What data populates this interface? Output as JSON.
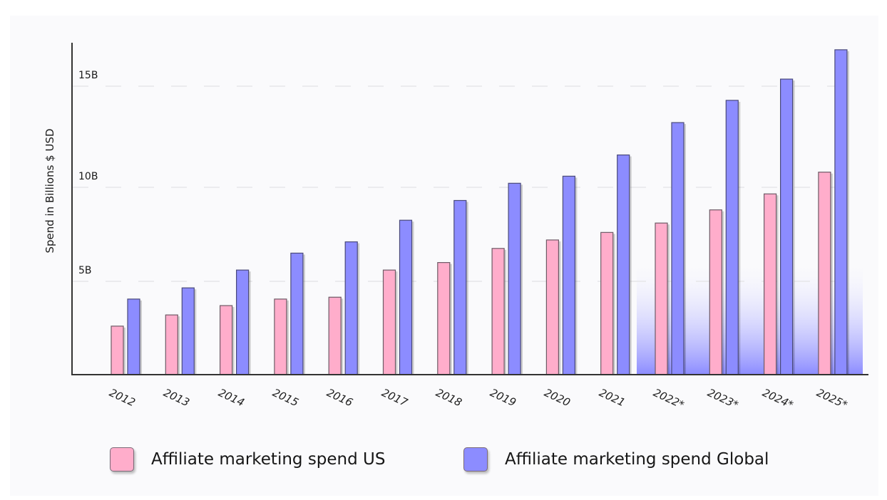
{
  "chart_data": {
    "type": "bar",
    "title": "",
    "xlabel": "",
    "ylabel": "Spend in Billions $ USD",
    "ylim": [
      0,
      17
    ],
    "yticks": [
      {
        "value": 5,
        "label": "5B"
      },
      {
        "value": 10,
        "label": "10B"
      },
      {
        "value": 15,
        "label": "15B"
      }
    ],
    "grid": true,
    "legend_position": "bottom",
    "categories": [
      "2012",
      "2013",
      "2014",
      "2015",
      "2016",
      "2017",
      "2018",
      "2019",
      "2020",
      "2021",
      "2022*",
      "2023*",
      "2024*",
      "2025*"
    ],
    "series": [
      {
        "name": "Affiliate marketing spend US",
        "color": "#ffadcb",
        "values": [
          2.6,
          3.2,
          3.7,
          4.05,
          4.15,
          5.6,
          6.0,
          6.75,
          7.2,
          7.6,
          8.1,
          8.8,
          9.65,
          10.75
        ]
      },
      {
        "name": "Affiliate marketing spend Global",
        "color": "#8c8cff",
        "values": [
          4.05,
          4.65,
          5.6,
          6.5,
          7.1,
          8.25,
          9.3,
          10.2,
          10.55,
          11.6,
          13.2,
          14.3,
          15.35,
          16.8
        ]
      }
    ],
    "annotations": [
      {
        "type": "highlight-region",
        "from": "2022*",
        "to": "2025*",
        "note": "forecast years (asterisk)"
      }
    ]
  },
  "legend": {
    "items": [
      {
        "label": "Affiliate marketing spend US",
        "color": "#ffadcb"
      },
      {
        "label": "Affiliate marketing spend Global",
        "color": "#8c8cff"
      }
    ]
  }
}
